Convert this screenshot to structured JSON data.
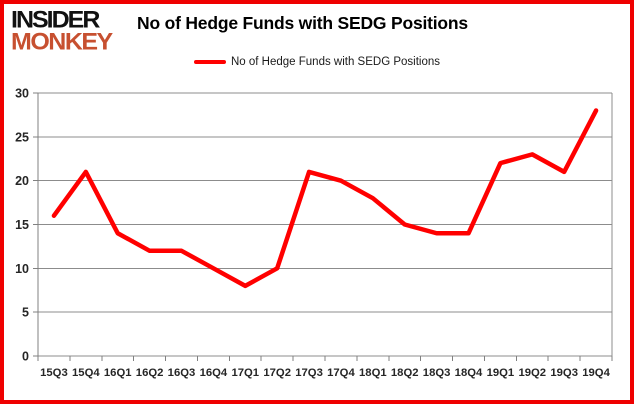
{
  "header": {
    "logo_line1": "INSIDER",
    "logo_line2": "MONKEY",
    "title": "No of Hedge Funds with SEDG Positions"
  },
  "legend": {
    "label": "No of Hedge Funds with SEDG Positions"
  },
  "colors": {
    "series": "#ff0000",
    "frame_border": "#ef0000",
    "grid": "#8c8c8c",
    "axis": "#808080",
    "logo_black": "#111111",
    "logo_accent": "#c75030",
    "title_text": "#000000",
    "tick_text": "#262626"
  },
  "chart_data": {
    "type": "line",
    "title": "No of Hedge Funds with SEDG Positions",
    "categories": [
      "15Q3",
      "15Q4",
      "16Q1",
      "16Q2",
      "16Q3",
      "16Q4",
      "17Q1",
      "17Q2",
      "17Q3",
      "17Q4",
      "18Q1",
      "18Q2",
      "18Q3",
      "18Q4",
      "19Q1",
      "19Q2",
      "19Q3",
      "19Q4"
    ],
    "series": [
      {
        "name": "No of Hedge Funds with SEDG Positions",
        "values": [
          16,
          21,
          14,
          12,
          12,
          10,
          8,
          10,
          21,
          20,
          18,
          15,
          14,
          14,
          22,
          23,
          21,
          28
        ]
      }
    ],
    "xlabel": "",
    "ylabel": "",
    "ylim": [
      0,
      30
    ],
    "y_ticks": [
      0,
      5,
      10,
      15,
      20,
      25,
      30
    ],
    "grid": true,
    "legend_position": "top-center"
  }
}
